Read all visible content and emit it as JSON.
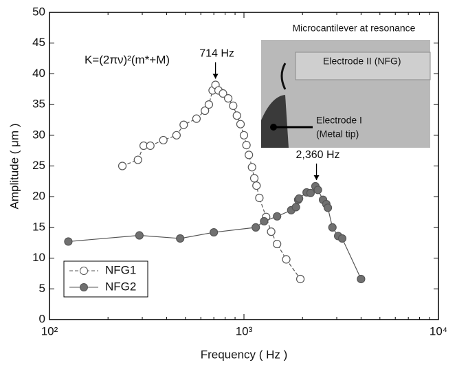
{
  "chart_data": {
    "type": "line",
    "x_label": "Frequency ( Hz )",
    "y_label": "Amplitude ( μm )",
    "xlim": [
      100,
      10000
    ],
    "log_x": true,
    "xticks": [
      {
        "value": 100,
        "label": "10²"
      },
      {
        "value": 1000,
        "label": "10³"
      },
      {
        "value": 10000,
        "label": "10⁴"
      }
    ],
    "ylim": [
      0,
      50
    ],
    "yticks": [
      0,
      5,
      10,
      15,
      20,
      25,
      30,
      35,
      40,
      45,
      50
    ],
    "legend": "lower left",
    "formula": "K=(2πν)²(m*+M)",
    "annotations": [
      {
        "text": "714 Hz",
        "x": 714
      },
      {
        "text": "2,360 Hz",
        "x": 2360
      }
    ],
    "inset": {
      "title": "Microcantilever at resonance",
      "labels": [
        "Electrode II (NFG)",
        "Electrode I",
        "(Metal tip)"
      ]
    },
    "series": [
      {
        "name": "NFG1",
        "color": "#555555",
        "marker": "open",
        "dashed": true,
        "x": [
          237,
          285,
          305,
          330,
          385,
          450,
          490,
          570,
          630,
          660,
          690,
          714,
          740,
          780,
          830,
          880,
          920,
          960,
          1000,
          1030,
          1060,
          1100,
          1130,
          1160,
          1200,
          1300,
          1380,
          1480,
          1650,
          1950
        ],
        "values": [
          25,
          26,
          28.3,
          28.3,
          29.2,
          30,
          31.7,
          32.7,
          34,
          35,
          37.3,
          38.2,
          37.3,
          36.8,
          36,
          34.8,
          33.2,
          31.8,
          30,
          28.4,
          26.8,
          24.8,
          23,
          21.8,
          19.8,
          16.7,
          14.3,
          12.3,
          9.8,
          6.6
        ]
      },
      {
        "name": "NFG2",
        "color": "#555555",
        "marker": "filled",
        "dashed": false,
        "x": [
          125,
          290,
          470,
          700,
          1150,
          1270,
          1480,
          1750,
          1850,
          1900,
          1920,
          2100,
          2200,
          2330,
          2400,
          2550,
          2650,
          2700,
          2850,
          3050,
          3200,
          4000
        ],
        "values": [
          12.7,
          13.7,
          13.2,
          14.2,
          15,
          16,
          16.8,
          17.8,
          18.3,
          19.5,
          19.7,
          20.7,
          20.6,
          21.7,
          21.1,
          19.5,
          18.8,
          18.2,
          15,
          13.6,
          13.2,
          6.6
        ]
      }
    ]
  }
}
